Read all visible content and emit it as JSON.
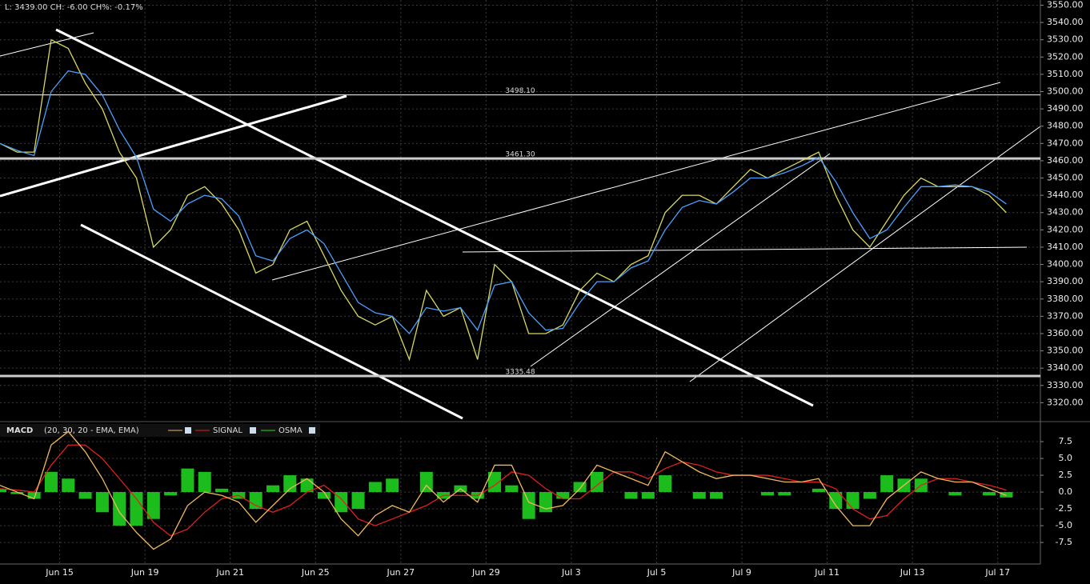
{
  "chart_data": [
    {
      "type": "line",
      "status": "L: 3439.00  CH: -6.00  CH%: -0.17%",
      "x": [
        0,
        2,
        4,
        6,
        8,
        10,
        12,
        14,
        16,
        18,
        20,
        22,
        24,
        26,
        28,
        30,
        32,
        34,
        36,
        38,
        40,
        42,
        44,
        46,
        48,
        50,
        52,
        54,
        56,
        58,
        60,
        62,
        64,
        66,
        68,
        70,
        72,
        74,
        76,
        78,
        80,
        82,
        84,
        86,
        88,
        90,
        92,
        94,
        96,
        98,
        100,
        102,
        104,
        106,
        108,
        110,
        112,
        114,
        116,
        118
      ],
      "xlim": [
        0,
        122
      ],
      "ylim": [
        3310,
        3553
      ],
      "yticks": [
        {
          "value": 3320,
          "label": "3320.00"
        },
        {
          "value": 3330,
          "label": "3330.00"
        },
        {
          "value": 3340,
          "label": "3340.00"
        },
        {
          "value": 3350,
          "label": "3350.00"
        },
        {
          "value": 3360,
          "label": "3360.00"
        },
        {
          "value": 3370,
          "label": "3370.00"
        },
        {
          "value": 3380,
          "label": "3380.00"
        },
        {
          "value": 3390,
          "label": "3390.00"
        },
        {
          "value": 3400,
          "label": "3400.00"
        },
        {
          "value": 3410,
          "label": "3410.00"
        },
        {
          "value": 3420,
          "label": "3420.00"
        },
        {
          "value": 3430,
          "label": "3430.00"
        },
        {
          "value": 3440,
          "label": "3440.00"
        },
        {
          "value": 3450,
          "label": "3450.00"
        },
        {
          "value": 3460,
          "label": "3460.00"
        },
        {
          "value": 3470,
          "label": "3470.00"
        },
        {
          "value": 3480,
          "label": "3480.00"
        },
        {
          "value": 3490,
          "label": "3490.00"
        },
        {
          "value": 3500,
          "label": "3500.00"
        },
        {
          "value": 3510,
          "label": "3510.00"
        },
        {
          "value": 3520,
          "label": "3520.00"
        },
        {
          "value": 3530,
          "label": "3530.00"
        },
        {
          "value": 3540,
          "label": "3540.00"
        },
        {
          "value": 3550,
          "label": "3550.00"
        }
      ],
      "grid": true,
      "levels": [
        {
          "value": 3498.1,
          "label": "3498.10",
          "color": "#ffffff",
          "width": 1
        },
        {
          "value": 3461.3,
          "label": "3461.30",
          "color": "#cccccc",
          "width": 3
        },
        {
          "value": 3335.48,
          "label": "3335.48",
          "color": "#cccccc",
          "width": 3
        }
      ],
      "series": [
        {
          "color": "#d8d860",
          "values": [
            3470,
            3465,
            3465,
            3530,
            3525,
            3505,
            3490,
            3465,
            3450,
            3410,
            3420,
            3440,
            3445,
            3435,
            3420,
            3395,
            3400,
            3420,
            3425,
            3405,
            3385,
            3370,
            3365,
            3370,
            3345,
            3385,
            3370,
            3375,
            3345,
            3400,
            3390,
            3360,
            3360,
            3365,
            3385,
            3395,
            3390,
            3400,
            3405,
            3430,
            3440,
            3440,
            3435,
            3445,
            3455,
            3450,
            3455,
            3460,
            3465,
            3440,
            3420,
            3410,
            3425,
            3440,
            3450,
            3445,
            3445,
            3445,
            3440,
            3430
          ]
        },
        {
          "color": "#4aa0ff",
          "values": [
            3470,
            3466,
            3463,
            3500,
            3512,
            3510,
            3498,
            3478,
            3462,
            3432,
            3425,
            3435,
            3440,
            3438,
            3428,
            3405,
            3402,
            3415,
            3420,
            3412,
            3395,
            3378,
            3372,
            3370,
            3360,
            3375,
            3373,
            3375,
            3362,
            3388,
            3390,
            3372,
            3362,
            3363,
            3378,
            3390,
            3390,
            3398,
            3402,
            3420,
            3433,
            3437,
            3435,
            3442,
            3450,
            3450,
            3453,
            3457,
            3462,
            3448,
            3430,
            3415,
            3420,
            3433,
            3445,
            3445,
            3446,
            3445,
            3442,
            3435
          ]
        }
      ]
    },
    {
      "type": "macd",
      "title": "MACD",
      "params": "(20, 30, 20 - EMA, EMA)",
      "x": [
        0,
        2,
        4,
        6,
        8,
        10,
        12,
        14,
        16,
        18,
        20,
        22,
        24,
        26,
        28,
        30,
        32,
        34,
        36,
        38,
        40,
        42,
        44,
        46,
        48,
        50,
        52,
        54,
        56,
        58,
        60,
        62,
        64,
        66,
        68,
        70,
        72,
        74,
        76,
        78,
        80,
        82,
        84,
        86,
        88,
        90,
        92,
        94,
        96,
        98,
        100,
        102,
        104,
        106,
        108,
        110,
        112,
        114,
        116,
        118
      ],
      "xlim": [
        0,
        122
      ],
      "ylim": [
        -10.7,
        8.1
      ],
      "xticks": [
        {
          "value": 7,
          "label": "Jun 15"
        },
        {
          "value": 17,
          "label": "Jun 19"
        },
        {
          "value": 27,
          "label": "Jun 21"
        },
        {
          "value": 37,
          "label": "Jun 25"
        },
        {
          "value": 47,
          "label": "Jun 27"
        },
        {
          "value": 57,
          "label": "Jun 29"
        },
        {
          "value": 67,
          "label": "Jul 3"
        },
        {
          "value": 77,
          "label": "Jul 5"
        },
        {
          "value": 87,
          "label": "Jul 9"
        },
        {
          "value": 97,
          "label": "Jul 11"
        },
        {
          "value": 107,
          "label": "Jul 13"
        },
        {
          "value": 117,
          "label": "Jul 17"
        }
      ],
      "yticks": [
        7.5,
        {
          "value": 5,
          "label": "5.0"
        },
        2.5,
        {
          "value": 0,
          "label": "0.0"
        },
        -2.5,
        {
          "value": -5,
          "label": "-5.0"
        },
        -7.5
      ],
      "series": [
        {
          "color": "#f0b860",
          "values": [
            1,
            0,
            -1,
            7,
            9,
            6,
            2,
            -3,
            -6,
            -8.5,
            -7,
            -2,
            0,
            -0.5,
            -1.5,
            -4.5,
            -2,
            0.5,
            2,
            0,
            -4,
            -6.5,
            -3.5,
            -2,
            -3,
            1,
            -1.5,
            0.5,
            -1.5,
            4,
            4,
            -1.5,
            -2.5,
            -2,
            0.5,
            4,
            3,
            2,
            1,
            6,
            4.5,
            3,
            2,
            2.5,
            2.5,
            2,
            1.5,
            1.5,
            2,
            -2,
            -5,
            -5,
            -1,
            1,
            3,
            2,
            1.5,
            1.5,
            0.5,
            -0.5
          ]
        },
        {
          "name": "SIGNAL",
          "color": "#e02020",
          "values": [
            0.5,
            0.3,
            0,
            4,
            7,
            7,
            5,
            2,
            -1,
            -4.5,
            -6.5,
            -5.5,
            -3,
            -1,
            -0.5,
            -2,
            -3,
            -2,
            0,
            1,
            -1,
            -4,
            -5,
            -4,
            -3,
            -2,
            -0.5,
            -0.5,
            -0.5,
            1,
            3,
            2.5,
            0.5,
            -1,
            -1,
            1,
            3,
            3,
            2,
            3.5,
            4.5,
            4,
            3,
            2.5,
            2.5,
            2.5,
            2,
            1.5,
            1.5,
            0.5,
            -2.5,
            -4,
            -3.5,
            -1,
            1,
            2,
            2,
            1.5,
            1,
            0.3
          ]
        },
        {
          "name": "OSMA",
          "color": "#22dd22",
          "values": [
            0.5,
            -0.3,
            -1,
            3,
            2,
            -1,
            -3,
            -5,
            -5,
            -4,
            -0.5,
            3.5,
            3,
            0.5,
            -1,
            -2.5,
            1,
            2.5,
            2,
            -1,
            -3,
            -2.5,
            1.5,
            2,
            0,
            3,
            -1,
            1,
            -1,
            3,
            1,
            -4,
            -3,
            -1,
            1.5,
            3,
            0,
            -1,
            -1,
            2.5,
            0,
            -1,
            -1,
            0,
            0,
            -0.5,
            -0.5,
            0,
            0.5,
            -2.5,
            -2.5,
            -1,
            2.5,
            2,
            2,
            0,
            -0.5,
            0,
            -0.5,
            -0.8
          ]
        }
      ]
    }
  ]
}
